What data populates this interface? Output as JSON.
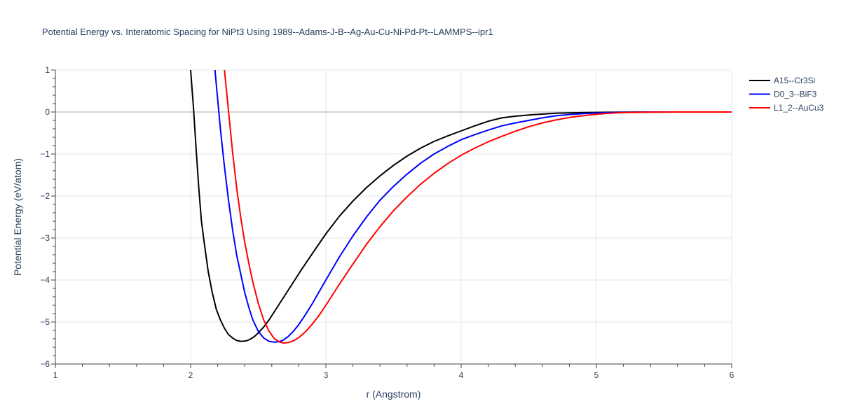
{
  "chart_data": {
    "type": "line",
    "title": "Potential Energy vs. Interatomic Spacing for NiPt3 Using 1989--Adams-J-B--Ag-Au-Cu-Ni-Pd-Pt--LAMMPS--ipr1",
    "xlabel": "r (Angstrom)",
    "ylabel": "Potential Energy (eV/atom)",
    "xlim": [
      1,
      6
    ],
    "ylim": [
      -6,
      1
    ],
    "xticks": [
      1,
      2,
      3,
      4,
      5,
      6
    ],
    "yticks": [
      1,
      0,
      -1,
      -2,
      -3,
      -4,
      -5,
      -6
    ],
    "ytick_labels": [
      "1",
      "0",
      "−1",
      "−2",
      "−3",
      "−4",
      "−5",
      "−6"
    ],
    "grid": true,
    "legend_position": "top-right",
    "series": [
      {
        "name": "A15--Cr3Si",
        "color": "#000000",
        "x": [
          2.0,
          2.02,
          2.04,
          2.06,
          2.08,
          2.1,
          2.13,
          2.16,
          2.19,
          2.22,
          2.25,
          2.28,
          2.31,
          2.34,
          2.37,
          2.4,
          2.42,
          2.44,
          2.47,
          2.5,
          2.54,
          2.58,
          2.63,
          2.68,
          2.75,
          2.82,
          2.9,
          3.0,
          3.1,
          3.2,
          3.3,
          3.4,
          3.5,
          3.6,
          3.7,
          3.8,
          3.9,
          4.0,
          4.1,
          4.2,
          4.3,
          4.4,
          4.5,
          4.6,
          4.7,
          4.8,
          4.9,
          5.0,
          5.1,
          5.2,
          5.4,
          5.6,
          5.8,
          6.0
        ],
        "y": [
          1.0,
          0.15,
          -0.85,
          -1.8,
          -2.6,
          -3.1,
          -3.8,
          -4.3,
          -4.7,
          -4.95,
          -5.15,
          -5.3,
          -5.38,
          -5.44,
          -5.46,
          -5.455,
          -5.44,
          -5.41,
          -5.35,
          -5.26,
          -5.12,
          -4.95,
          -4.7,
          -4.45,
          -4.1,
          -3.75,
          -3.37,
          -2.9,
          -2.48,
          -2.12,
          -1.8,
          -1.52,
          -1.27,
          -1.05,
          -0.86,
          -0.7,
          -0.57,
          -0.45,
          -0.33,
          -0.22,
          -0.14,
          -0.1,
          -0.07,
          -0.05,
          -0.03,
          -0.02,
          -0.015,
          -0.01,
          -0.007,
          -0.004,
          -0.001,
          0.0,
          0.0,
          0.0
        ]
      },
      {
        "name": "D0_3--BiF3",
        "color": "#0000ff",
        "x": [
          2.18,
          2.2,
          2.22,
          2.25,
          2.28,
          2.31,
          2.34,
          2.37,
          2.4,
          2.43,
          2.46,
          2.5,
          2.54,
          2.58,
          2.62,
          2.65,
          2.68,
          2.72,
          2.76,
          2.8,
          2.85,
          2.9,
          3.0,
          3.1,
          3.2,
          3.3,
          3.4,
          3.5,
          3.6,
          3.7,
          3.8,
          3.9,
          4.0,
          4.1,
          4.2,
          4.3,
          4.4,
          4.5,
          4.6,
          4.7,
          4.8,
          4.9,
          5.0,
          5.1,
          5.2,
          5.4,
          5.6,
          5.8,
          6.0
        ],
        "y": [
          1.0,
          0.3,
          -0.4,
          -1.3,
          -2.1,
          -2.8,
          -3.4,
          -3.85,
          -4.3,
          -4.65,
          -4.95,
          -5.22,
          -5.38,
          -5.46,
          -5.48,
          -5.47,
          -5.44,
          -5.35,
          -5.22,
          -5.06,
          -4.82,
          -4.56,
          -4.0,
          -3.45,
          -2.95,
          -2.5,
          -2.1,
          -1.77,
          -1.48,
          -1.22,
          -1.0,
          -0.82,
          -0.66,
          -0.54,
          -0.43,
          -0.33,
          -0.26,
          -0.2,
          -0.14,
          -0.09,
          -0.06,
          -0.04,
          -0.025,
          -0.015,
          -0.008,
          -0.002,
          0.0,
          0.0,
          0.0
        ]
      },
      {
        "name": "L1_2--AuCu3",
        "color": "#ff0000",
        "x": [
          2.25,
          2.27,
          2.29,
          2.31,
          2.34,
          2.37,
          2.4,
          2.43,
          2.46,
          2.5,
          2.54,
          2.58,
          2.62,
          2.66,
          2.69,
          2.72,
          2.76,
          2.8,
          2.85,
          2.9,
          2.95,
          3.0,
          3.1,
          3.2,
          3.3,
          3.4,
          3.5,
          3.6,
          3.7,
          3.8,
          3.9,
          4.0,
          4.1,
          4.2,
          4.3,
          4.4,
          4.5,
          4.6,
          4.7,
          4.8,
          4.9,
          5.0,
          5.1,
          5.2,
          5.4,
          5.6,
          5.8,
          6.0
        ],
        "y": [
          1.0,
          0.35,
          -0.3,
          -0.95,
          -1.8,
          -2.5,
          -3.1,
          -3.6,
          -4.05,
          -4.55,
          -4.95,
          -5.22,
          -5.4,
          -5.48,
          -5.5,
          -5.49,
          -5.45,
          -5.37,
          -5.23,
          -5.05,
          -4.84,
          -4.6,
          -4.1,
          -3.62,
          -3.15,
          -2.73,
          -2.35,
          -2.02,
          -1.72,
          -1.46,
          -1.23,
          -1.03,
          -0.86,
          -0.71,
          -0.58,
          -0.46,
          -0.35,
          -0.26,
          -0.19,
          -0.13,
          -0.09,
          -0.055,
          -0.03,
          -0.015,
          -0.004,
          0.0,
          0.0,
          0.0
        ]
      }
    ]
  }
}
